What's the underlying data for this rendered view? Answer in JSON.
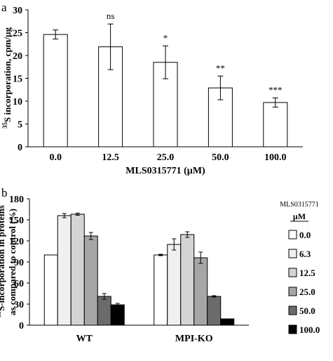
{
  "chart_data": [
    {
      "panel_label": "a",
      "type": "bar",
      "categories": [
        "0.0",
        "12.5",
        "25.0",
        "50.0",
        "100.0"
      ],
      "values": [
        24.6,
        21.9,
        18.5,
        12.9,
        9.7
      ],
      "errors": [
        1.0,
        5.0,
        3.6,
        2.6,
        1.0
      ],
      "significance": [
        "",
        "ns",
        "*",
        "**",
        "***"
      ],
      "ylabel_sup": "35",
      "ylabel_main": "S incorporation, cpm/µg",
      "xlabel": "MLS0315771 (µM)",
      "ylim": [
        0,
        30
      ],
      "yticks": [
        0,
        5,
        10,
        15,
        20,
        25,
        30
      ],
      "bar_color": "#ffffff"
    },
    {
      "panel_label": "b",
      "type": "bar",
      "categories": [
        "WT",
        "MPI-KO"
      ],
      "legend_title": "MLS0315771",
      "legend_unit": "µM",
      "series": [
        {
          "name": "0.0",
          "color": "#ffffff",
          "values": [
            100,
            100
          ],
          "errors": [
            0,
            1
          ]
        },
        {
          "name": "6.3",
          "color": "#f0f0f0",
          "values": [
            156,
            115
          ],
          "errors": [
            3,
            8
          ]
        },
        {
          "name": "12.5",
          "color": "#d4d4d4",
          "values": [
            158,
            129
          ],
          "errors": [
            1.5,
            4
          ]
        },
        {
          "name": "25.0",
          "color": "#a6a6a6",
          "values": [
            127,
            96
          ],
          "errors": [
            5,
            8
          ]
        },
        {
          "name": "50.0",
          "color": "#6b6b6b",
          "values": [
            41,
            41
          ],
          "errors": [
            4,
            1
          ]
        },
        {
          "name": "100.0",
          "color": "#000000",
          "values": [
            29,
            9
          ],
          "errors": [
            2,
            0
          ]
        }
      ],
      "ylabel_sup": "35",
      "ylabel_line1": "S-incorporation in proteins",
      "ylabel_line2": "as compared to control (%)",
      "ylim": [
        0,
        180
      ],
      "yticks": [
        0,
        30,
        60,
        90,
        120,
        150,
        180
      ]
    }
  ]
}
